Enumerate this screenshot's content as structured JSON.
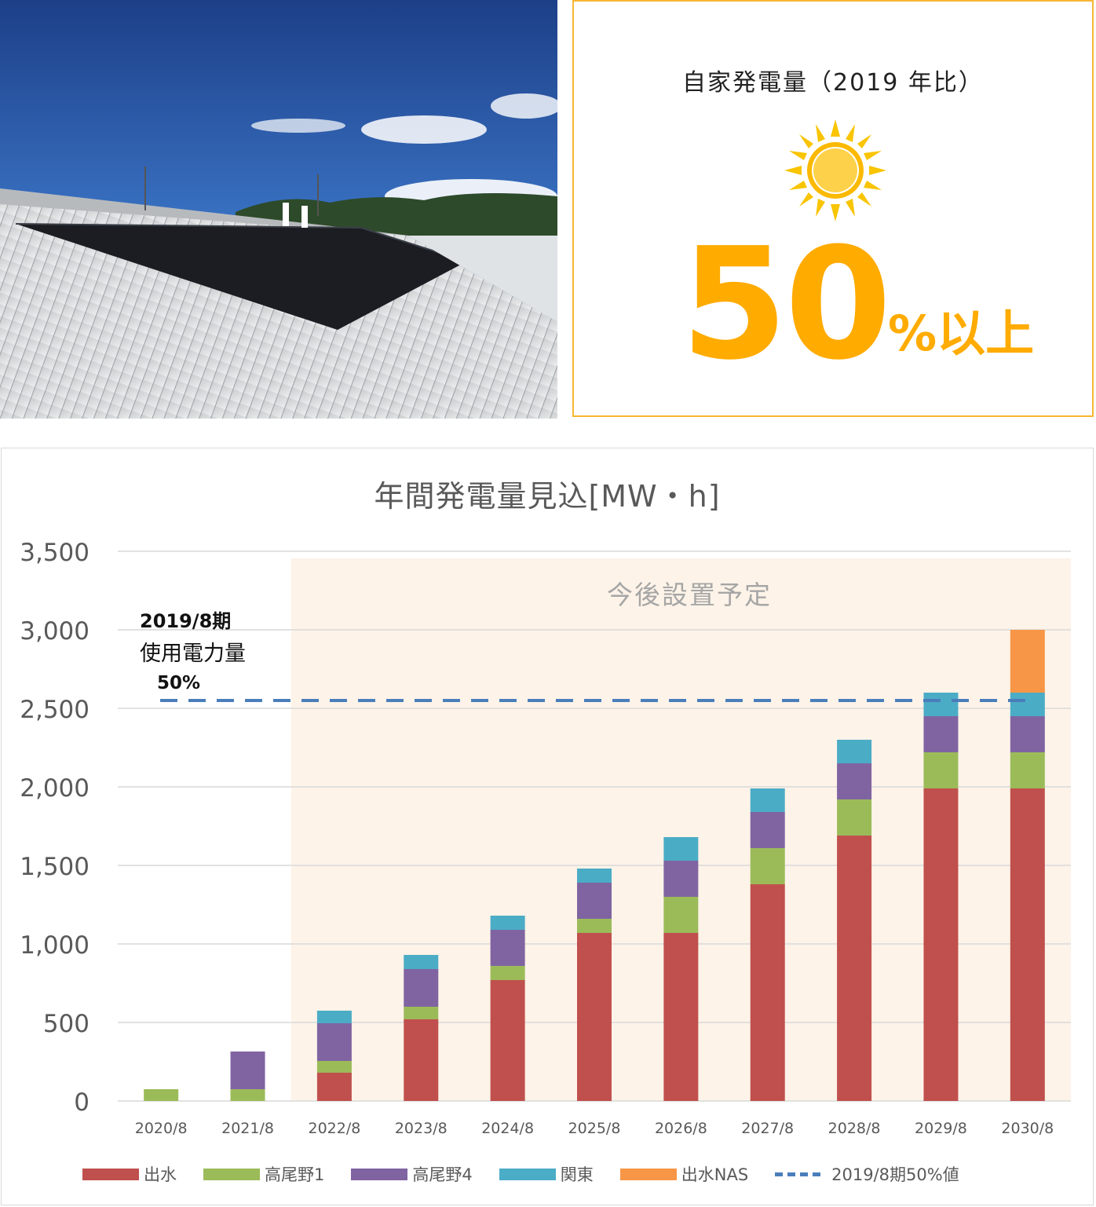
{
  "highlight": {
    "title": "自家発電量（2019 年比）",
    "icon": "sun-icon",
    "value": "50",
    "suffix": "%以上",
    "accent_color": "#ffab00",
    "border_color": "#f7b733"
  },
  "photo": {
    "subject": "rooftop-solar-panels-photo"
  },
  "chart": {
    "future_label": "今後設置予定",
    "annotation": {
      "line1": "2019/8期",
      "line2": "使用電力量",
      "line3": "50%"
    }
  },
  "chart_data": {
    "type": "bar",
    "stacked": true,
    "title": "年間発電量見込[MW・h]",
    "categories": [
      "2020/8",
      "2021/8",
      "2022/8",
      "2023/8",
      "2024/8",
      "2025/8",
      "2026/8",
      "2027/8",
      "2028/8",
      "2029/8",
      "2030/8"
    ],
    "series": [
      {
        "name": "出水",
        "color": "#c0504d",
        "values": [
          0,
          0,
          180,
          520,
          770,
          1070,
          1070,
          1380,
          1690,
          1990,
          1990
        ]
      },
      {
        "name": "高尾野1",
        "color": "#9bbb59",
        "values": [
          75,
          75,
          75,
          80,
          90,
          90,
          230,
          230,
          230,
          230,
          230
        ]
      },
      {
        "name": "高尾野4",
        "color": "#8064a2",
        "values": [
          0,
          240,
          240,
          240,
          230,
          230,
          230,
          230,
          230,
          230,
          230
        ]
      },
      {
        "name": "関東",
        "color": "#4bacc6",
        "values": [
          0,
          0,
          80,
          90,
          90,
          90,
          150,
          150,
          150,
          150,
          150
        ]
      },
      {
        "name": "出水NAS",
        "color": "#f79646",
        "values": [
          0,
          0,
          0,
          0,
          0,
          0,
          0,
          0,
          0,
          0,
          400
        ]
      }
    ],
    "reference_line": {
      "name": "2019/8期50%値",
      "value": 2550,
      "color": "#4a7ebb",
      "style": "dashed"
    },
    "ylim": [
      0,
      3500
    ],
    "yticks": [
      0,
      500,
      1000,
      1500,
      2000,
      2500,
      3000,
      3500
    ],
    "ytick_labels": [
      "0",
      "500",
      "1,000",
      "1,500",
      "2,000",
      "2,500",
      "3,000",
      "3,500"
    ],
    "grid": true,
    "legend_position": "bottom",
    "highlight_region": {
      "from_category": "2022/8",
      "to_category": "2030/8",
      "color": "#fdf3e8"
    }
  }
}
